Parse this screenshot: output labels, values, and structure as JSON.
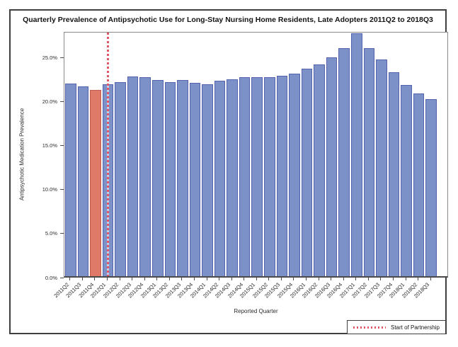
{
  "chart_data": {
    "type": "bar",
    "title": "Quarterly Prevalence of Antipsychotic Use for Long-Stay Nursing Home Residents, Late Adopters 2011Q2 to 2018Q3",
    "xlabel": "Reported Quarter",
    "ylabel": "Antipsychotic Medication Prevalence",
    "categories": [
      "2011Q2",
      "2011Q3",
      "2011Q4",
      "2012Q1",
      "2012Q2",
      "2012Q3",
      "2012Q4",
      "2013Q1",
      "2013Q2",
      "2013Q3",
      "2013Q4",
      "2014Q1",
      "2014Q2",
      "2014Q3",
      "2014Q4",
      "2015Q1",
      "2015Q2",
      "2015Q3",
      "2015Q4",
      "2016Q1",
      "2016Q2",
      "2016Q3",
      "2016Q4",
      "2017Q1",
      "2017Q2",
      "2017Q3",
      "2017Q4",
      "2018Q1",
      "2018Q2",
      "2018Q3"
    ],
    "values": [
      22.1,
      21.8,
      21.4,
      22.0,
      22.3,
      22.9,
      22.8,
      22.5,
      22.3,
      22.5,
      22.2,
      22.0,
      22.4,
      22.6,
      22.8,
      22.8,
      22.8,
      23.0,
      23.2,
      23.8,
      24.3,
      25.1,
      26.2,
      27.9,
      26.2,
      24.9,
      23.4,
      21.9,
      21.0,
      20.3
    ],
    "y_ticks": [
      "0.0%",
      "5.0%",
      "10.0%",
      "15.0%",
      "20.0%",
      "25.0%"
    ],
    "y_tick_values": [
      0,
      5,
      10,
      15,
      20,
      25
    ],
    "ylim": [
      0,
      27.95
    ],
    "grid": false,
    "highlight": {
      "category": "2011Q4"
    },
    "reference_line": {
      "category": "2012Q1",
      "orientation": "vertical",
      "style": "dotted"
    },
    "legend": {
      "position": "bottom-right",
      "label": "Start of Partnership",
      "swatch": "red-dotted-line"
    },
    "colors": {
      "bar_fill": "#7d91c9",
      "bar_border": "#5563ae",
      "highlight_fill": "#df7a69",
      "highlight_border": "#bf5b4f",
      "ref_line": "#e15767"
    }
  }
}
